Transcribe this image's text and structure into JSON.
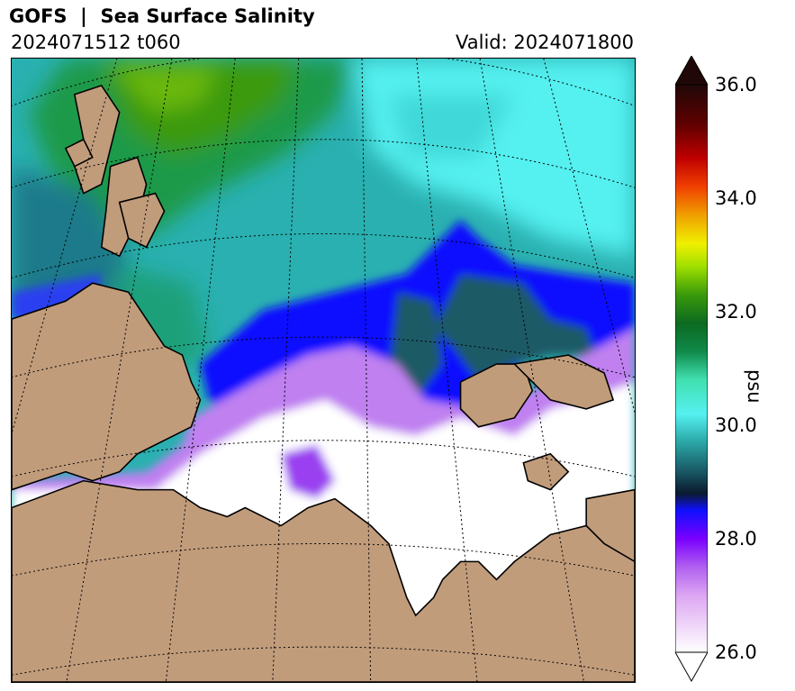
{
  "header": {
    "title": "GOFS  |  Sea Surface Salinity",
    "run": "2024071512 t060",
    "valid": "Valid: 2024071800"
  },
  "colorbar": {
    "unit": "psu",
    "min": 26.0,
    "max": 36.0,
    "ticks": [
      "26.0",
      "28.0",
      "30.0",
      "32.0",
      "34.0",
      "36.0"
    ],
    "tick_values": [
      26.0,
      28.0,
      30.0,
      32.0,
      34.0,
      36.0
    ],
    "extend": "both",
    "stops": [
      {
        "v": 26.0,
        "c": "#ffffff"
      },
      {
        "v": 27.0,
        "c": "#dca6f2"
      },
      {
        "v": 27.5,
        "c": "#b060f0"
      },
      {
        "v": 28.0,
        "c": "#7a00ff"
      },
      {
        "v": 28.5,
        "c": "#1010ff"
      },
      {
        "v": 28.8,
        "c": "#0a1a2e"
      },
      {
        "v": 29.2,
        "c": "#1a5a66"
      },
      {
        "v": 29.7,
        "c": "#2aa6a6"
      },
      {
        "v": 30.2,
        "c": "#55f0f0"
      },
      {
        "v": 30.8,
        "c": "#40e0b0"
      },
      {
        "v": 31.3,
        "c": "#108a4a"
      },
      {
        "v": 31.8,
        "c": "#0c6a20"
      },
      {
        "v": 32.3,
        "c": "#3a9a0a"
      },
      {
        "v": 32.8,
        "c": "#a0e000"
      },
      {
        "v": 33.2,
        "c": "#f0f000"
      },
      {
        "v": 33.7,
        "c": "#f0a000"
      },
      {
        "v": 34.2,
        "c": "#f04000"
      },
      {
        "v": 34.7,
        "c": "#c00000"
      },
      {
        "v": 35.3,
        "c": "#600000"
      },
      {
        "v": 36.0,
        "c": "#200808"
      }
    ],
    "over_color": "#200808",
    "under_color": "#ffffff"
  },
  "map": {
    "land_color": "#c19c7b",
    "ice_color": "#ffffff",
    "grid_style": "dotted"
  }
}
